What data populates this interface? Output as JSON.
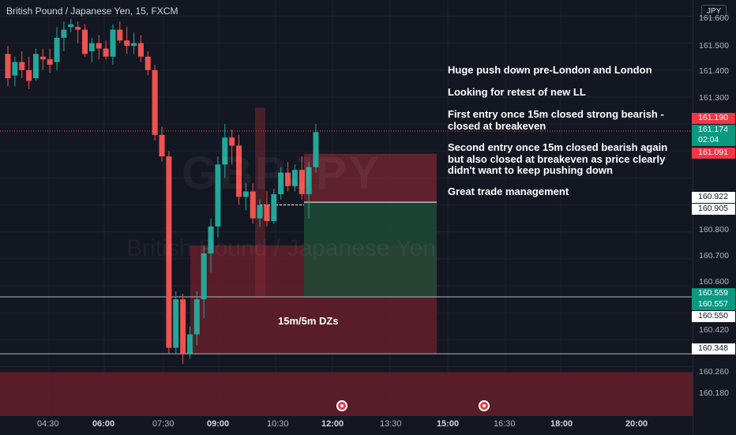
{
  "header": {
    "title": "British Pound / Japanese Yen, 15, FXCM"
  },
  "watermark": {
    "symbol": "GBPJPY",
    "name": "British Pound / Japanese Yen"
  },
  "annotations": [
    "Huge push down pre-London and London",
    "Looking for retest of new LL",
    "First entry once 15m closed strong bearish - closed at breakeven",
    "Second entry once 15m closed bearish again but also closed at breakeven as price clearly didn't want to keep pushing down",
    "Great trade management"
  ],
  "zone_label": "15m/5m DZs",
  "price_axis": {
    "currency": "JPY",
    "ticks": [
      "161.600",
      "161.500",
      "161.400",
      "161.300",
      "160.800",
      "160.700",
      "160.600",
      "160.420",
      "160.260",
      "160.180"
    ],
    "tags": [
      {
        "value": "161.190",
        "color": "#f23645"
      },
      {
        "value": "161.174",
        "color": "#089981"
      },
      {
        "value": "02:04",
        "color": "#089981"
      },
      {
        "value": "161.091",
        "color": "#f23645"
      },
      {
        "value": "160.922",
        "color": "#ffffff"
      },
      {
        "value": "160.905",
        "color": "#ffffff"
      },
      {
        "value": "160.559",
        "color": "#089981"
      },
      {
        "value": "160.557",
        "color": "#089981"
      },
      {
        "value": "160.550",
        "color": "#ffffff"
      },
      {
        "value": "160.348",
        "color": "#ffffff"
      }
    ]
  },
  "time_axis": {
    "ticks": [
      {
        "label": "04:30",
        "bold": false
      },
      {
        "label": "06:00",
        "bold": true
      },
      {
        "label": "07:30",
        "bold": false
      },
      {
        "label": "09:00",
        "bold": true
      },
      {
        "label": "10:30",
        "bold": false
      },
      {
        "label": "12:00",
        "bold": true
      },
      {
        "label": "13:30",
        "bold": false
      },
      {
        "label": "15:00",
        "bold": true
      },
      {
        "label": "16:30",
        "bold": false
      },
      {
        "label": "18:00",
        "bold": true
      },
      {
        "label": "20:00",
        "bold": true
      }
    ]
  },
  "events": [
    {
      "name": "uk-event-icon-1",
      "icon": "union-jack-icon"
    },
    {
      "name": "uk-event-icon-2",
      "icon": "union-jack-icon"
    }
  ],
  "colors": {
    "bull": "#26a69a",
    "bear": "#ef5350",
    "background": "#131722",
    "zone": "#6b1f2a"
  },
  "chart_data": {
    "type": "candlestick",
    "symbol": "GBPJPY",
    "timeframe": "15",
    "ylim": [
      160.12,
      161.66
    ],
    "candles": [
      {
        "o": 161.46,
        "h": 161.49,
        "l": 161.34,
        "c": 161.37
      },
      {
        "o": 161.38,
        "h": 161.45,
        "l": 161.34,
        "c": 161.43
      },
      {
        "o": 161.43,
        "h": 161.47,
        "l": 161.37,
        "c": 161.4
      },
      {
        "o": 161.4,
        "h": 161.45,
        "l": 161.33,
        "c": 161.36
      },
      {
        "o": 161.37,
        "h": 161.48,
        "l": 161.36,
        "c": 161.46
      },
      {
        "o": 161.45,
        "h": 161.48,
        "l": 161.4,
        "c": 161.44
      },
      {
        "o": 161.44,
        "h": 161.48,
        "l": 161.39,
        "c": 161.42
      },
      {
        "o": 161.43,
        "h": 161.56,
        "l": 161.4,
        "c": 161.52
      },
      {
        "o": 161.52,
        "h": 161.58,
        "l": 161.47,
        "c": 161.55
      },
      {
        "o": 161.56,
        "h": 161.59,
        "l": 161.54,
        "c": 161.57
      },
      {
        "o": 161.56,
        "h": 161.58,
        "l": 161.5,
        "c": 161.55
      },
      {
        "o": 161.55,
        "h": 161.57,
        "l": 161.45,
        "c": 161.46
      },
      {
        "o": 161.47,
        "h": 161.52,
        "l": 161.43,
        "c": 161.5
      },
      {
        "o": 161.5,
        "h": 161.53,
        "l": 161.44,
        "c": 161.48
      },
      {
        "o": 161.48,
        "h": 161.51,
        "l": 161.44,
        "c": 161.45
      },
      {
        "o": 161.45,
        "h": 161.57,
        "l": 161.42,
        "c": 161.55
      },
      {
        "o": 161.55,
        "h": 161.58,
        "l": 161.5,
        "c": 161.51
      },
      {
        "o": 161.51,
        "h": 161.56,
        "l": 161.46,
        "c": 161.49
      },
      {
        "o": 161.49,
        "h": 161.54,
        "l": 161.46,
        "c": 161.5
      },
      {
        "o": 161.5,
        "h": 161.53,
        "l": 161.43,
        "c": 161.45
      },
      {
        "o": 161.45,
        "h": 161.47,
        "l": 161.38,
        "c": 161.4
      },
      {
        "o": 161.4,
        "h": 161.42,
        "l": 161.14,
        "c": 161.16
      },
      {
        "o": 161.16,
        "h": 161.19,
        "l": 161.06,
        "c": 161.08
      },
      {
        "o": 161.08,
        "h": 161.1,
        "l": 160.35,
        "c": 160.37
      },
      {
        "o": 160.37,
        "h": 160.58,
        "l": 160.35,
        "c": 160.55
      },
      {
        "o": 160.55,
        "h": 160.57,
        "l": 160.31,
        "c": 160.35
      },
      {
        "o": 160.35,
        "h": 160.45,
        "l": 160.33,
        "c": 160.42
      },
      {
        "o": 160.42,
        "h": 160.58,
        "l": 160.38,
        "c": 160.55
      },
      {
        "o": 160.55,
        "h": 160.75,
        "l": 160.48,
        "c": 160.72
      },
      {
        "o": 160.72,
        "h": 160.85,
        "l": 160.65,
        "c": 160.82
      },
      {
        "o": 160.82,
        "h": 161.08,
        "l": 160.78,
        "c": 161.05
      },
      {
        "o": 161.05,
        "h": 161.2,
        "l": 161.0,
        "c": 161.15
      },
      {
        "o": 161.15,
        "h": 161.18,
        "l": 161.05,
        "c": 161.12
      },
      {
        "o": 161.12,
        "h": 161.16,
        "l": 160.9,
        "c": 160.93
      },
      {
        "o": 160.93,
        "h": 160.98,
        "l": 160.88,
        "c": 160.95
      },
      {
        "o": 160.95,
        "h": 160.98,
        "l": 160.83,
        "c": 160.85
      },
      {
        "o": 160.85,
        "h": 160.92,
        "l": 160.82,
        "c": 160.9
      },
      {
        "o": 160.9,
        "h": 160.95,
        "l": 160.82,
        "c": 160.84
      },
      {
        "o": 160.84,
        "h": 160.96,
        "l": 160.83,
        "c": 160.94
      },
      {
        "o": 160.94,
        "h": 161.04,
        "l": 160.92,
        "c": 161.02
      },
      {
        "o": 161.02,
        "h": 161.06,
        "l": 160.95,
        "c": 160.97
      },
      {
        "o": 160.97,
        "h": 161.05,
        "l": 160.95,
        "c": 161.03
      },
      {
        "o": 161.03,
        "h": 161.08,
        "l": 160.92,
        "c": 160.94
      },
      {
        "o": 160.94,
        "h": 161.06,
        "l": 160.85,
        "c": 161.04
      },
      {
        "o": 161.04,
        "h": 161.2,
        "l": 161.02,
        "c": 161.17
      }
    ],
    "horizontal_levels": [
      161.19,
      161.091,
      160.922,
      160.905,
      160.559,
      160.557,
      160.55,
      160.348
    ],
    "zones": [
      {
        "type": "demand",
        "from": 160.348,
        "to": 160.75
      },
      {
        "type": "demand",
        "from": 160.1,
        "to": 160.28
      }
    ],
    "positions": [
      {
        "type": "short",
        "entry": 160.91,
        "stop": 161.09,
        "target": 160.56
      }
    ]
  }
}
